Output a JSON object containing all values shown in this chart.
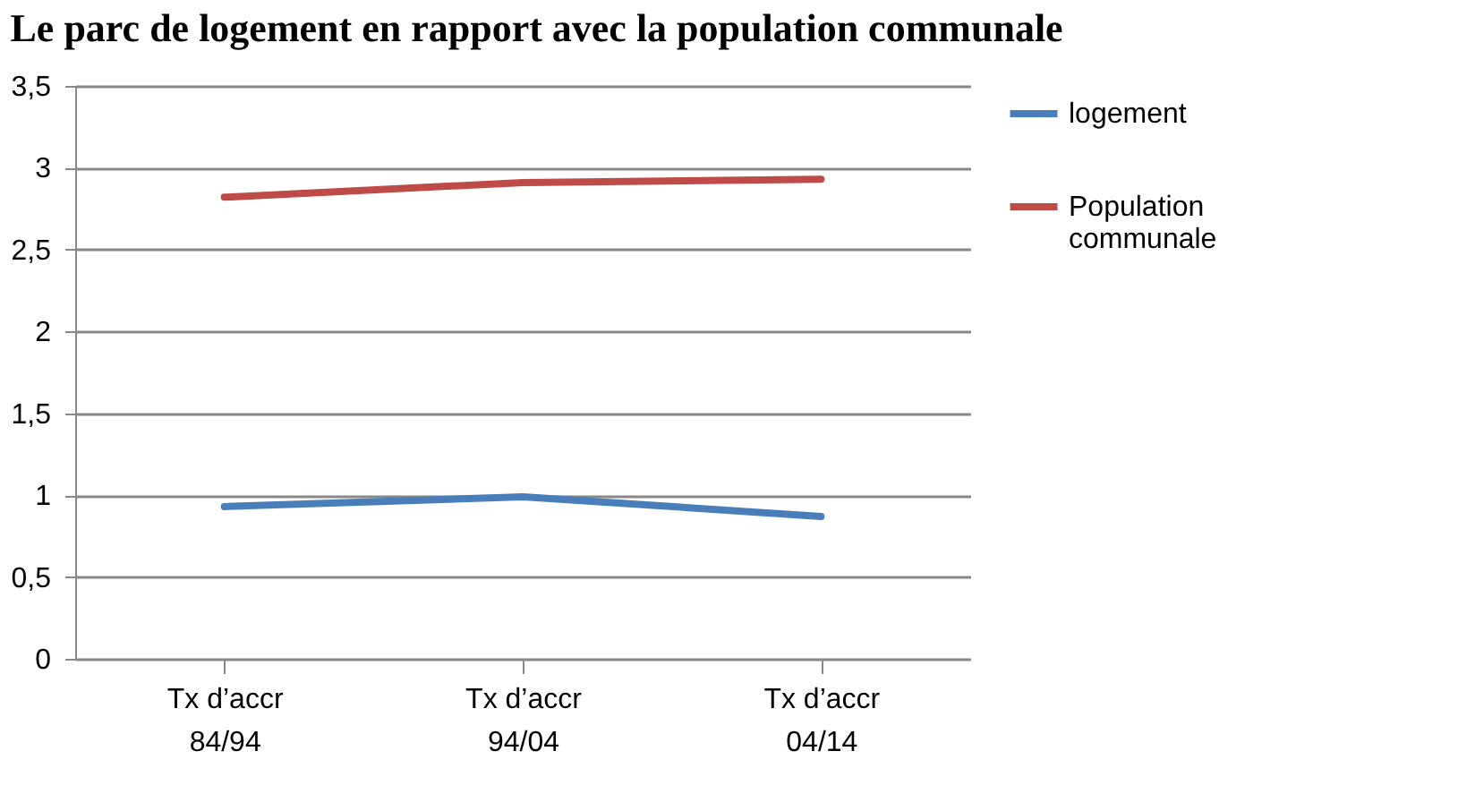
{
  "chart_data": {
    "type": "line",
    "title": "Le parc de logement en rapport avec la population communale",
    "categories": [
      "Tx d’accr\n84/94",
      "Tx d’accr\n94/04",
      "Tx d’accr\n04/14"
    ],
    "series": [
      {
        "name": "logement",
        "color": "#4a7ebb",
        "values": [
          0.93,
          0.99,
          0.87
        ]
      },
      {
        "name": "Population\ncommunale",
        "color": "#be4b48",
        "values": [
          2.82,
          2.91,
          2.93
        ]
      }
    ],
    "ylim": [
      0,
      3.5
    ],
    "yticks": [
      0,
      {
        "value": 0.5,
        "label": "0,5"
      },
      1,
      {
        "value": 1.5,
        "label": "1,5"
      },
      2,
      {
        "value": 2.5,
        "label": "2,5"
      },
      3,
      {
        "value": 3.5,
        "label": "3,5"
      }
    ],
    "grid": "y",
    "legend": "right",
    "marker": "none",
    "line_style": "solid"
  }
}
